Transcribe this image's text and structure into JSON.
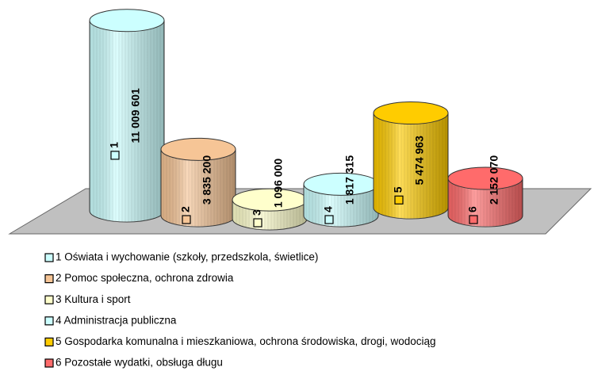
{
  "chart_data": {
    "type": "cylinder",
    "categories": [
      "1",
      "2",
      "3",
      "4",
      "5",
      "6"
    ],
    "values": [
      11009601,
      3835200,
      1096000,
      1817315,
      5474963,
      2152070
    ],
    "value_labels": [
      "11 009 601",
      "3 835 200",
      "1 096 000",
      "1 817 315",
      "5 474 963",
      "2 152 070"
    ],
    "colors": [
      "#ccffff",
      "#f6c596",
      "#ffffcc",
      "#ccffff",
      "#ffcc00",
      "#ff6b6b"
    ],
    "legend": [
      "1 Oświata i wychowanie (szkoły, przedszkola, świetlice)",
      "2 Pomoc społeczna, ochrona zdrowia",
      "3 Kultura i sport",
      "4 Administracja publiczna",
      "5 Gospodarka komunalna i mieszkaniowa, ochrona środowiska, drogi, wodociąg",
      "6 Pozostałe wydatki, obsługa długu"
    ],
    "legend_position": "bottom"
  }
}
